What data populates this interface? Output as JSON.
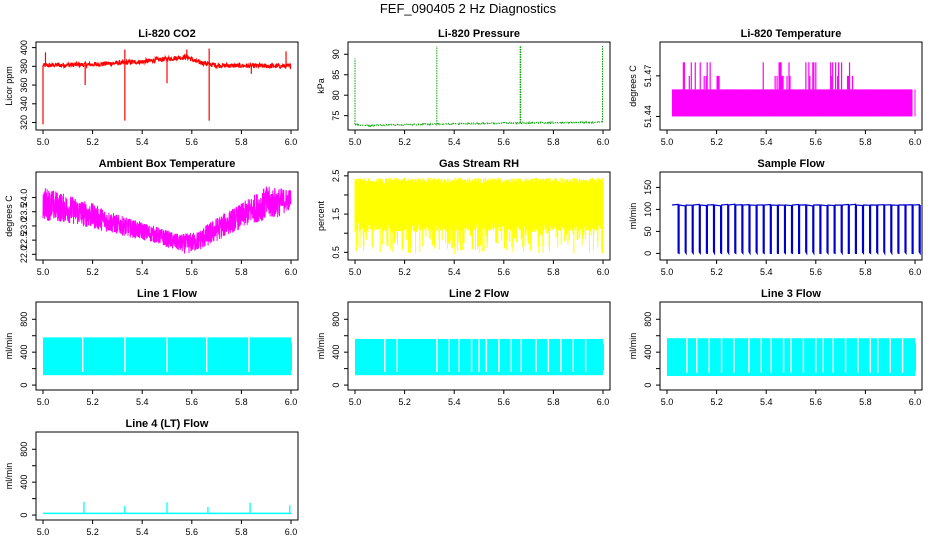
{
  "title": "FEF_090405  2 Hz Diagnostics",
  "chart_data": [
    {
      "type": "line",
      "title": "Li-820 CO2",
      "ylabel": "Licor ppm",
      "color": "#ff0000",
      "xlim": [
        5.0,
        6.0
      ],
      "ylim": [
        312,
        406
      ],
      "xticks": [
        "5.0",
        "5.2",
        "5.4",
        "5.6",
        "5.8",
        "6.0"
      ],
      "yticks": [
        320,
        340,
        360,
        380,
        400
      ],
      "ytick_labels": [
        "320",
        "340",
        "360",
        "380",
        "400"
      ],
      "style": "noisy_trend",
      "baseline_points": [
        [
          5.0,
          381
        ],
        [
          5.2,
          382
        ],
        [
          5.4,
          385
        ],
        [
          5.5,
          388
        ],
        [
          5.58,
          390
        ],
        [
          5.62,
          385
        ],
        [
          5.7,
          381
        ],
        [
          6.0,
          380
        ]
      ],
      "noise": 2.5,
      "spikes": [
        [
          5.0,
          318
        ],
        [
          5.01,
          395
        ],
        [
          5.17,
          360
        ],
        [
          5.33,
          322
        ],
        [
          5.33,
          398
        ],
        [
          5.5,
          362
        ],
        [
          5.58,
          398
        ],
        [
          5.67,
          322
        ],
        [
          5.67,
          399
        ],
        [
          5.84,
          372
        ],
        [
          5.98,
          396
        ]
      ]
    },
    {
      "type": "line",
      "title": "Li-820 Pressure",
      "ylabel": "kPa",
      "color": "#00a000",
      "xlim": [
        5.0,
        6.0
      ],
      "ylim": [
        71.5,
        93
      ],
      "xticks": [
        "5.0",
        "5.2",
        "5.4",
        "5.6",
        "5.8",
        "6.0"
      ],
      "yticks": [
        75,
        80,
        85,
        90
      ],
      "ytick_labels": [
        "75",
        "80",
        "85",
        "90"
      ],
      "style": "dotted_trend",
      "baseline_points": [
        [
          5.0,
          72.9
        ],
        [
          5.05,
          72.6
        ],
        [
          5.2,
          72.8
        ],
        [
          5.4,
          73.0
        ],
        [
          5.6,
          73.2
        ],
        [
          5.8,
          73.3
        ],
        [
          6.0,
          73.4
        ]
      ],
      "noise": 0.15,
      "spikes": [
        [
          5.0,
          89
        ],
        [
          5.33,
          92
        ],
        [
          5.666,
          92
        ],
        [
          5.668,
          92
        ],
        [
          5.998,
          92
        ]
      ]
    },
    {
      "type": "line",
      "title": "Li-820 Temperature",
      "ylabel": "degrees C",
      "color": "#ff00ff",
      "xlim": [
        5.0,
        6.0
      ],
      "ylim": [
        51.43,
        51.495
      ],
      "xticks": [
        "5.0",
        "5.2",
        "5.4",
        "5.6",
        "5.8",
        "6.0"
      ],
      "yticks": [
        51.44,
        51.47
      ],
      "ytick_labels": [
        "51.44",
        "51.47"
      ],
      "style": "quantized",
      "levels": [
        51.44,
        51.45,
        51.46,
        51.47,
        51.48
      ],
      "block": [
        5.02,
        5.99
      ],
      "low": 51.44,
      "high": 51.46,
      "upper_bursts": [
        [
          5.05,
          5.08
        ],
        [
          5.09,
          5.22
        ],
        [
          5.38,
          5.5
        ],
        [
          5.56,
          5.6
        ],
        [
          5.66,
          5.76
        ],
        [
          5.9,
          5.92
        ]
      ]
    },
    {
      "type": "line",
      "title": "Ambient Box Temperature",
      "ylabel": "degrees C",
      "color": "#ff00ff",
      "xlim": [
        5.0,
        6.0
      ],
      "ylim": [
        21.8,
        24.9
      ],
      "xticks": [
        "5.0",
        "5.2",
        "5.4",
        "5.6",
        "5.8",
        "6.0"
      ],
      "yticks": [
        22.0,
        22.5,
        23.0,
        23.5,
        24.0
      ],
      "ytick_labels": [
        "22.0",
        "22.5",
        "23.0",
        "23.5",
        "24.0"
      ],
      "style": "noisy_band",
      "upper_points": [
        [
          5.0,
          24.4
        ],
        [
          5.1,
          24.1
        ],
        [
          5.2,
          23.8
        ],
        [
          5.3,
          23.4
        ],
        [
          5.45,
          23.0
        ],
        [
          5.55,
          22.7
        ],
        [
          5.62,
          22.8
        ],
        [
          5.7,
          23.3
        ],
        [
          5.8,
          23.8
        ],
        [
          5.9,
          24.4
        ],
        [
          6.0,
          24.3
        ]
      ],
      "lower_points": [
        [
          5.0,
          23.2
        ],
        [
          5.1,
          23.1
        ],
        [
          5.2,
          22.9
        ],
        [
          5.3,
          22.7
        ],
        [
          5.45,
          22.4
        ],
        [
          5.58,
          22.0
        ],
        [
          5.65,
          22.2
        ],
        [
          5.75,
          22.7
        ],
        [
          5.85,
          23.1
        ],
        [
          5.95,
          23.3
        ],
        [
          6.0,
          23.6
        ]
      ]
    },
    {
      "type": "line",
      "title": "Gas Stream RH",
      "ylabel": "percent",
      "color": "#ffff00",
      "xlim": [
        5.0,
        6.0
      ],
      "ylim": [
        0.3,
        2.6
      ],
      "xticks": [
        "5.0",
        "5.2",
        "5.4",
        "5.6",
        "5.8",
        "6.0"
      ],
      "yticks": [
        0.5,
        1.0,
        1.5,
        2.0,
        2.5
      ],
      "ytick_labels": [
        "0.5",
        "1.5",
        "2.5"
      ],
      "style": "rh_band",
      "top": 2.25,
      "upper_top": 2.45,
      "bottom": 1.3,
      "dip_min": 0.45
    },
    {
      "type": "line",
      "title": "Sample Flow",
      "ylabel": "ml/min",
      "color": "#0000cc",
      "xlim": [
        5.0,
        6.0
      ],
      "ylim": [
        -15,
        185
      ],
      "xticks": [
        "5.0",
        "5.2",
        "5.4",
        "5.6",
        "5.8",
        "6.0"
      ],
      "yticks": [
        0,
        50,
        100,
        150
      ],
      "ytick_labels": [
        "0",
        "50",
        "100",
        "150"
      ],
      "style": "pulse",
      "high": 110,
      "low": 0,
      "period": 0.0286,
      "start": 5.02,
      "end": 6.0,
      "pulse_width": 0.004
    },
    {
      "type": "line",
      "title": "Line 1 Flow",
      "ylabel": "ml/min",
      "color": "#00ffff",
      "xlim": [
        5.0,
        6.0
      ],
      "ylim": [
        -60,
        1010
      ],
      "xticks": [
        "5.0",
        "5.2",
        "5.4",
        "5.6",
        "5.8",
        "6.0"
      ],
      "yticks": [
        0,
        200,
        400,
        600,
        800
      ],
      "ytick_labels": [
        "0",
        "400",
        "800"
      ],
      "style": "flow_block",
      "high": 580,
      "low": 120,
      "gaps": [
        5.16,
        5.33,
        5.5,
        5.66,
        5.83
      ]
    },
    {
      "type": "line",
      "title": "Line 2 Flow",
      "ylabel": "ml/min",
      "color": "#00ffff",
      "xlim": [
        5.0,
        6.0
      ],
      "ylim": [
        -60,
        1010
      ],
      "xticks": [
        "5.0",
        "5.2",
        "5.4",
        "5.6",
        "5.8",
        "6.0"
      ],
      "yticks": [
        0,
        200,
        400,
        600,
        800
      ],
      "ytick_labels": [
        "0",
        "400",
        "800"
      ],
      "style": "flow_block",
      "high": 560,
      "low": 120,
      "gaps": [
        5.12,
        5.17,
        5.33,
        5.38,
        5.42,
        5.47,
        5.5,
        5.53,
        5.58,
        5.63,
        5.67,
        5.73,
        5.78,
        5.83,
        5.88,
        5.93
      ]
    },
    {
      "type": "line",
      "title": "Line 3 Flow",
      "ylabel": "ml/min",
      "color": "#00ffff",
      "xlim": [
        5.0,
        6.0
      ],
      "ylim": [
        -60,
        1010
      ],
      "xticks": [
        "5.0",
        "5.2",
        "5.4",
        "5.6",
        "5.8",
        "6.0"
      ],
      "yticks": [
        0,
        200,
        400,
        600,
        800
      ],
      "ytick_labels": [
        "0",
        "400",
        "800"
      ],
      "style": "flow_block",
      "high": 570,
      "low": 110,
      "gaps": [
        5.08,
        5.12,
        5.17,
        5.22,
        5.27,
        5.33,
        5.38,
        5.42,
        5.47,
        5.5,
        5.55,
        5.6,
        5.63,
        5.67,
        5.72,
        5.77,
        5.82,
        5.85,
        5.9,
        5.95
      ]
    },
    {
      "type": "line",
      "title": "Line 4 (LT) Flow",
      "ylabel": "ml/min",
      "color": "#00ffff",
      "xlim": [
        5.0,
        6.0
      ],
      "ylim": [
        -60,
        1010
      ],
      "xticks": [
        "5.0",
        "5.2",
        "5.4",
        "5.6",
        "5.8",
        "6.0"
      ],
      "yticks": [
        0,
        200,
        400,
        600,
        800
      ],
      "ytick_labels": [
        "0",
        "400",
        "800"
      ],
      "style": "flat_spikes",
      "baseline": 20,
      "spikes": [
        [
          5.165,
          160
        ],
        [
          5.33,
          110
        ],
        [
          5.5,
          155
        ],
        [
          5.665,
          100
        ],
        [
          5.835,
          150
        ],
        [
          5.995,
          120
        ]
      ]
    }
  ]
}
